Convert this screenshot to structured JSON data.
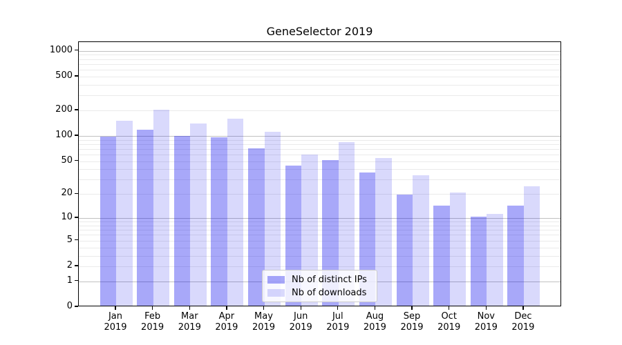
{
  "chart_data": {
    "type": "bar",
    "title": "GeneSelector 2019",
    "xlabel": "",
    "ylabel": "",
    "yscale": "log1p",
    "ylim": [
      0,
      1274
    ],
    "grid": true,
    "legend_position": "lower center",
    "categories": [
      [
        "Jan",
        "2019"
      ],
      [
        "Feb",
        "2019"
      ],
      [
        "Mar",
        "2019"
      ],
      [
        "Apr",
        "2019"
      ],
      [
        "May",
        "2019"
      ],
      [
        "Jun",
        "2019"
      ],
      [
        "Jul",
        "2019"
      ],
      [
        "Aug",
        "2019"
      ],
      [
        "Sep",
        "2019"
      ],
      [
        "Oct",
        "2019"
      ],
      [
        "Nov",
        "2019"
      ],
      [
        "Dec",
        "2019"
      ]
    ],
    "series": [
      {
        "name": "Nb of distinct IPs",
        "color": "rgba(0, 0, 238, 0.34)",
        "values": [
          95,
          114,
          97,
          92,
          69,
          43,
          50,
          35,
          19,
          14,
          10,
          14
        ]
      },
      {
        "name": "Nb of downloads",
        "color": "rgba(0, 0, 238, 0.15)",
        "values": [
          145,
          195,
          135,
          153,
          108,
          58,
          82,
          53,
          33,
          20,
          11,
          24
        ]
      }
    ],
    "y_ticks": [
      {
        "label": "0",
        "value": 0
      },
      {
        "label": "1",
        "value": 1
      },
      {
        "label": "2",
        "value": 2
      },
      {
        "label": "5",
        "value": 5
      },
      {
        "label": "10",
        "value": 10
      },
      {
        "label": "20",
        "value": 20
      },
      {
        "label": "50",
        "value": 50
      },
      {
        "label": "100",
        "value": 100
      },
      {
        "label": "200",
        "value": 200
      },
      {
        "label": "500",
        "value": 500
      },
      {
        "label": "1000",
        "value": 1000
      }
    ],
    "y_major_gridlines": [
      1,
      10,
      100,
      1000
    ],
    "y_minor_gridlines": [
      2,
      3,
      4,
      5,
      6,
      7,
      8,
      9,
      20,
      30,
      40,
      50,
      60,
      70,
      80,
      90,
      200,
      300,
      400,
      500,
      600,
      700,
      800,
      900
    ],
    "colors": {
      "gridline_major": "#c0c0c0",
      "gridline_minor": "#eaeaea",
      "spine": "#000000",
      "legend_border": "#cccccc"
    }
  }
}
